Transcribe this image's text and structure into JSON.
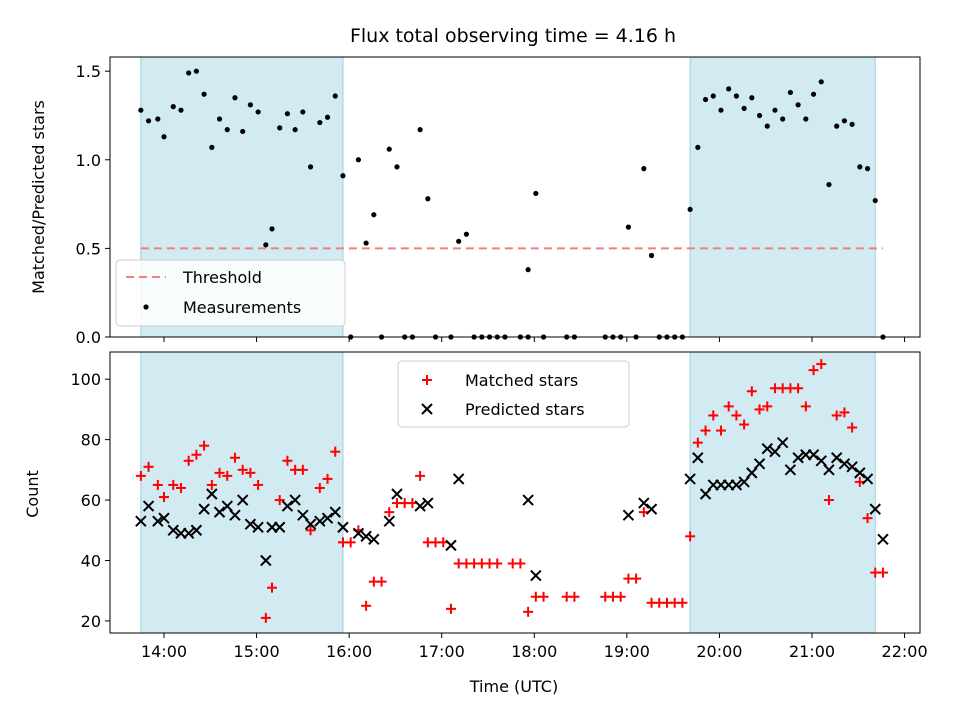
{
  "chart_data": [
    {
      "type": "scatter",
      "title": "Flux total observing time = 4.16 h",
      "xlabel": "",
      "ylabel": "Matched/Predicted stars",
      "xlim": [
        "13:25",
        "22:10"
      ],
      "ylim": [
        0,
        1.58
      ],
      "yticks": [
        0.0,
        0.5,
        1.0,
        1.5
      ],
      "ytick_labels": [
        "0.0",
        "0.5",
        "1.0",
        "1.5"
      ],
      "shaded_intervals": [
        [
          "13:45",
          "15:56"
        ],
        [
          "19:41",
          "21:41"
        ]
      ],
      "shade_color": "#add8e6",
      "threshold": {
        "name": "Threshold",
        "y": 0.5,
        "x": [
          "13:45",
          "21:46"
        ],
        "color": "#f08080"
      },
      "legend": {
        "position": "lower-left",
        "entries": [
          "Threshold",
          "Measurements"
        ]
      },
      "series": [
        {
          "name": "Measurements",
          "color": "#000000",
          "marker": "dot",
          "points": [
            [
              "13:45",
              1.28
            ],
            [
              "13:50",
              1.22
            ],
            [
              "13:56",
              1.23
            ],
            [
              "14:00",
              1.13
            ],
            [
              "14:06",
              1.3
            ],
            [
              "14:11",
              1.28
            ],
            [
              "14:16",
              1.49
            ],
            [
              "14:21",
              1.5
            ],
            [
              "14:26",
              1.37
            ],
            [
              "14:31",
              1.07
            ],
            [
              "14:36",
              1.23
            ],
            [
              "14:41",
              1.17
            ],
            [
              "14:46",
              1.35
            ],
            [
              "14:51",
              1.16
            ],
            [
              "14:56",
              1.31
            ],
            [
              "15:01",
              1.27
            ],
            [
              "15:06",
              0.52
            ],
            [
              "15:10",
              0.61
            ],
            [
              "15:15",
              1.18
            ],
            [
              "15:20",
              1.26
            ],
            [
              "15:25",
              1.17
            ],
            [
              "15:30",
              1.27
            ],
            [
              "15:35",
              0.96
            ],
            [
              "15:41",
              1.21
            ],
            [
              "15:46",
              1.24
            ],
            [
              "15:51",
              1.36
            ],
            [
              "15:56",
              0.91
            ],
            [
              "16:01",
              0.0
            ],
            [
              "16:06",
              1.0
            ],
            [
              "16:11",
              0.53
            ],
            [
              "16:16",
              0.69
            ],
            [
              "16:21",
              0.0
            ],
            [
              "16:26",
              1.06
            ],
            [
              "16:31",
              0.96
            ],
            [
              "16:36",
              0.0
            ],
            [
              "16:41",
              0.0
            ],
            [
              "16:46",
              1.17
            ],
            [
              "16:51",
              0.78
            ],
            [
              "16:56",
              0.0
            ],
            [
              "17:06",
              0.0
            ],
            [
              "17:11",
              0.54
            ],
            [
              "17:16",
              0.58
            ],
            [
              "17:21",
              0.0
            ],
            [
              "17:26",
              0.0
            ],
            [
              "17:31",
              0.0
            ],
            [
              "17:36",
              0.0
            ],
            [
              "17:41",
              0.0
            ],
            [
              "17:51",
              0.0
            ],
            [
              "17:56",
              0.0
            ],
            [
              "17:56",
              0.38
            ],
            [
              "18:01",
              0.81
            ],
            [
              "18:06",
              0.0
            ],
            [
              "18:21",
              0.0
            ],
            [
              "18:26",
              0.0
            ],
            [
              "18:46",
              0.0
            ],
            [
              "18:51",
              0.0
            ],
            [
              "18:56",
              0.0
            ],
            [
              "19:01",
              0.62
            ],
            [
              "19:06",
              0.0
            ],
            [
              "19:11",
              0.95
            ],
            [
              "19:16",
              0.46
            ],
            [
              "19:21",
              0.0
            ],
            [
              "19:26",
              0.0
            ],
            [
              "19:31",
              0.0
            ],
            [
              "19:36",
              0.0
            ],
            [
              "19:41",
              0.72
            ],
            [
              "19:46",
              1.07
            ],
            [
              "19:51",
              1.34
            ],
            [
              "19:56",
              1.36
            ],
            [
              "20:01",
              1.28
            ],
            [
              "20:06",
              1.4
            ],
            [
              "20:11",
              1.36
            ],
            [
              "20:16",
              1.29
            ],
            [
              "20:21",
              1.35
            ],
            [
              "20:26",
              1.25
            ],
            [
              "20:31",
              1.19
            ],
            [
              "20:36",
              1.28
            ],
            [
              "20:41",
              1.23
            ],
            [
              "20:46",
              1.38
            ],
            [
              "20:51",
              1.31
            ],
            [
              "20:56",
              1.23
            ],
            [
              "21:01",
              1.37
            ],
            [
              "21:06",
              1.44
            ],
            [
              "21:11",
              0.86
            ],
            [
              "21:16",
              1.19
            ],
            [
              "21:21",
              1.22
            ],
            [
              "21:26",
              1.2
            ],
            [
              "21:31",
              0.96
            ],
            [
              "21:36",
              0.95
            ],
            [
              "21:41",
              0.77
            ],
            [
              "21:46",
              0.0
            ]
          ]
        }
      ]
    },
    {
      "type": "scatter",
      "title": "",
      "xlabel": "Time (UTC)",
      "ylabel": "Count",
      "xlim": [
        "13:25",
        "22:10"
      ],
      "ylim": [
        16,
        109
      ],
      "yticks": [
        20,
        40,
        60,
        80,
        100
      ],
      "ytick_labels": [
        "20",
        "40",
        "60",
        "80",
        "100"
      ],
      "xticks": [
        "14:00",
        "15:00",
        "16:00",
        "17:00",
        "18:00",
        "19:00",
        "20:00",
        "21:00",
        "22:00"
      ],
      "shaded_intervals": [
        [
          "13:45",
          "15:56"
        ],
        [
          "19:41",
          "21:41"
        ]
      ],
      "shade_color": "#add8e6",
      "legend": {
        "position": "upper-center",
        "entries": [
          "Matched stars",
          "Predicted stars"
        ]
      },
      "series": [
        {
          "name": "Matched stars",
          "color": "#ff0000",
          "marker": "plus",
          "points": [
            [
              "13:45",
              68
            ],
            [
              "13:50",
              71
            ],
            [
              "13:56",
              65
            ],
            [
              "14:00",
              61
            ],
            [
              "14:06",
              65
            ],
            [
              "14:11",
              64
            ],
            [
              "14:16",
              73
            ],
            [
              "14:21",
              75
            ],
            [
              "14:26",
              78
            ],
            [
              "14:31",
              65
            ],
            [
              "14:36",
              69
            ],
            [
              "14:41",
              68
            ],
            [
              "14:46",
              74
            ],
            [
              "14:51",
              70
            ],
            [
              "14:56",
              69
            ],
            [
              "15:01",
              65
            ],
            [
              "15:06",
              21
            ],
            [
              "15:10",
              31
            ],
            [
              "15:15",
              60
            ],
            [
              "15:20",
              73
            ],
            [
              "15:25",
              70
            ],
            [
              "15:30",
              70
            ],
            [
              "15:35",
              50
            ],
            [
              "15:41",
              64
            ],
            [
              "15:46",
              67
            ],
            [
              "15:51",
              76
            ],
            [
              "15:56",
              46
            ],
            [
              "16:01",
              46
            ],
            [
              "16:06",
              50
            ],
            [
              "16:11",
              25
            ],
            [
              "16:16",
              33
            ],
            [
              "16:21",
              33
            ],
            [
              "16:26",
              56
            ],
            [
              "16:31",
              59
            ],
            [
              "16:36",
              59
            ],
            [
              "16:41",
              59
            ],
            [
              "16:46",
              68
            ],
            [
              "16:51",
              46
            ],
            [
              "16:56",
              46
            ],
            [
              "17:01",
              46
            ],
            [
              "17:06",
              24
            ],
            [
              "17:11",
              39
            ],
            [
              "17:16",
              39
            ],
            [
              "17:21",
              39
            ],
            [
              "17:26",
              39
            ],
            [
              "17:31",
              39
            ],
            [
              "17:36",
              39
            ],
            [
              "17:46",
              39
            ],
            [
              "17:51",
              39
            ],
            [
              "17:56",
              23
            ],
            [
              "18:01",
              28
            ],
            [
              "18:06",
              28
            ],
            [
              "18:21",
              28
            ],
            [
              "18:26",
              28
            ],
            [
              "18:46",
              28
            ],
            [
              "18:51",
              28
            ],
            [
              "18:56",
              28
            ],
            [
              "19:01",
              34
            ],
            [
              "19:06",
              34
            ],
            [
              "19:11",
              56
            ],
            [
              "19:16",
              26
            ],
            [
              "19:21",
              26
            ],
            [
              "19:26",
              26
            ],
            [
              "19:31",
              26
            ],
            [
              "19:36",
              26
            ],
            [
              "19:41",
              48
            ],
            [
              "19:46",
              79
            ],
            [
              "19:51",
              83
            ],
            [
              "19:56",
              88
            ],
            [
              "20:01",
              83
            ],
            [
              "20:06",
              91
            ],
            [
              "20:11",
              88
            ],
            [
              "20:16",
              85
            ],
            [
              "20:21",
              96
            ],
            [
              "20:26",
              90
            ],
            [
              "20:31",
              91
            ],
            [
              "20:36",
              97
            ],
            [
              "20:41",
              97
            ],
            [
              "20:46",
              97
            ],
            [
              "20:51",
              97
            ],
            [
              "20:56",
              91
            ],
            [
              "21:01",
              103
            ],
            [
              "21:06",
              105
            ],
            [
              "21:11",
              60
            ],
            [
              "21:16",
              88
            ],
            [
              "21:21",
              89
            ],
            [
              "21:26",
              84
            ],
            [
              "21:31",
              66
            ],
            [
              "21:36",
              54
            ],
            [
              "21:41",
              36
            ],
            [
              "21:46",
              36
            ]
          ]
        },
        {
          "name": "Predicted stars",
          "color": "#000000",
          "marker": "x",
          "points": [
            [
              "13:45",
              53
            ],
            [
              "13:50",
              58
            ],
            [
              "13:56",
              53
            ],
            [
              "14:00",
              54
            ],
            [
              "14:06",
              50
            ],
            [
              "14:11",
              49
            ],
            [
              "14:16",
              49
            ],
            [
              "14:21",
              50
            ],
            [
              "14:26",
              57
            ],
            [
              "14:31",
              62
            ],
            [
              "14:36",
              56
            ],
            [
              "14:41",
              58
            ],
            [
              "14:46",
              55
            ],
            [
              "14:51",
              60
            ],
            [
              "14:56",
              52
            ],
            [
              "15:01",
              51
            ],
            [
              "15:06",
              40
            ],
            [
              "15:10",
              51
            ],
            [
              "15:15",
              51
            ],
            [
              "15:20",
              58
            ],
            [
              "15:25",
              60
            ],
            [
              "15:30",
              55
            ],
            [
              "15:35",
              52
            ],
            [
              "15:41",
              53
            ],
            [
              "15:46",
              54
            ],
            [
              "15:51",
              56
            ],
            [
              "15:56",
              51
            ],
            [
              "16:06",
              49
            ],
            [
              "16:11",
              48
            ],
            [
              "16:16",
              47
            ],
            [
              "16:26",
              53
            ],
            [
              "16:31",
              62
            ],
            [
              "16:46",
              58
            ],
            [
              "16:51",
              59
            ],
            [
              "17:06",
              45
            ],
            [
              "17:11",
              67
            ],
            [
              "17:56",
              60
            ],
            [
              "18:01",
              35
            ],
            [
              "19:01",
              55
            ],
            [
              "19:11",
              59
            ],
            [
              "19:16",
              57
            ],
            [
              "19:41",
              67
            ],
            [
              "19:46",
              74
            ],
            [
              "19:51",
              62
            ],
            [
              "19:56",
              65
            ],
            [
              "20:01",
              65
            ],
            [
              "20:06",
              65
            ],
            [
              "20:11",
              65
            ],
            [
              "20:16",
              66
            ],
            [
              "20:21",
              69
            ],
            [
              "20:26",
              72
            ],
            [
              "20:31",
              77
            ],
            [
              "20:36",
              76
            ],
            [
              "20:41",
              79
            ],
            [
              "20:46",
              70
            ],
            [
              "20:51",
              74
            ],
            [
              "20:56",
              75
            ],
            [
              "21:01",
              75
            ],
            [
              "21:06",
              73
            ],
            [
              "21:11",
              70
            ],
            [
              "21:16",
              74
            ],
            [
              "21:21",
              72
            ],
            [
              "21:26",
              71
            ],
            [
              "21:31",
              69
            ],
            [
              "21:36",
              67
            ],
            [
              "21:41",
              57
            ],
            [
              "21:46",
              47
            ]
          ]
        }
      ]
    }
  ]
}
